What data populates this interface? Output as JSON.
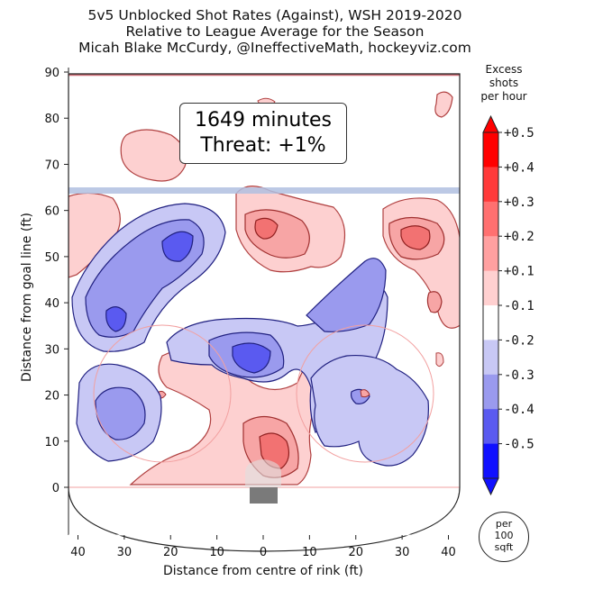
{
  "title": {
    "line1": "5v5 Unblocked Shot Rates (Against), WSH 2019-2020",
    "line2": "Relative to League Average for the Season",
    "line3": "Micah Blake McCurdy, @IneffectiveMath, hockeyviz.com"
  },
  "annotation": {
    "minutes": "1649 minutes",
    "threat": "Threat: +1%"
  },
  "colorbar": {
    "title_lines": [
      "Excess",
      "shots",
      "per hour"
    ],
    "tick_labels": [
      "+0.5",
      "+0.4",
      "+0.3",
      "+0.2",
      "+0.1",
      "-0.1",
      "-0.2",
      "-0.3",
      "-0.4",
      "-0.5"
    ],
    "unit_lines": [
      "per",
      "100",
      "sqft"
    ]
  },
  "chart_data": {
    "type": "heatmap",
    "title": "5v5 Unblocked Shot Rates (Against), WSH 2019-2020",
    "subtitle": "Relative to League Average for the Season",
    "xlabel": "Distance from centre of rink (ft)",
    "ylabel": "Distance from goal line (ft)",
    "x_ticks": [
      "40",
      "30",
      "20",
      "10",
      "0",
      "10",
      "20",
      "30",
      "40"
    ],
    "y_ticks": [
      "0",
      "10",
      "20",
      "30",
      "40",
      "50",
      "60",
      "70",
      "80",
      "90"
    ],
    "xlim": [
      -42.5,
      42.5
    ],
    "ylim": [
      -11,
      90
    ],
    "grid": false,
    "levels": [
      0.5,
      0.4,
      0.3,
      0.2,
      0.1,
      -0.1,
      -0.2,
      -0.3,
      -0.4,
      -0.5
    ],
    "level_colors": [
      "#ff0000",
      "#ff3a3a",
      "#ff7070",
      "#ffa0a0",
      "#ffd0d0",
      "#ffffff",
      "#c8c8f5",
      "#9a9aee",
      "#5a5af0",
      "#1010ff"
    ],
    "regions": [
      {
        "sign": "positive",
        "center": [
          -28,
          72
        ],
        "peak": 0.1
      },
      {
        "sign": "positive",
        "center": [
          -40,
          55
        ],
        "peak": 0.1
      },
      {
        "sign": "positive",
        "center": [
          38,
          82
        ],
        "peak": 0.1
      },
      {
        "sign": "positive",
        "center": [
          4,
          56
        ],
        "peak": 0.3
      },
      {
        "sign": "positive",
        "center": [
          32,
          53
        ],
        "peak": 0.3
      },
      {
        "sign": "positive",
        "center": [
          36,
          40
        ],
        "peak": 0.2
      },
      {
        "sign": "positive",
        "center": [
          3,
          8
        ],
        "peak": 0.3
      },
      {
        "sign": "positive",
        "center": [
          13,
          30
        ],
        "peak": 0.1
      },
      {
        "sign": "negative",
        "center": [
          -18,
          52
        ],
        "peak": -0.3
      },
      {
        "sign": "negative",
        "center": [
          -31,
          37
        ],
        "peak": -0.3
      },
      {
        "sign": "negative",
        "center": [
          -25,
          16
        ],
        "peak": -0.2
      },
      {
        "sign": "negative",
        "center": [
          -2,
          28
        ],
        "peak": -0.3
      },
      {
        "sign": "negative",
        "center": [
          22,
          40
        ],
        "peak": -0.2
      },
      {
        "sign": "negative",
        "center": [
          22,
          18
        ],
        "peak": -0.2
      }
    ]
  }
}
